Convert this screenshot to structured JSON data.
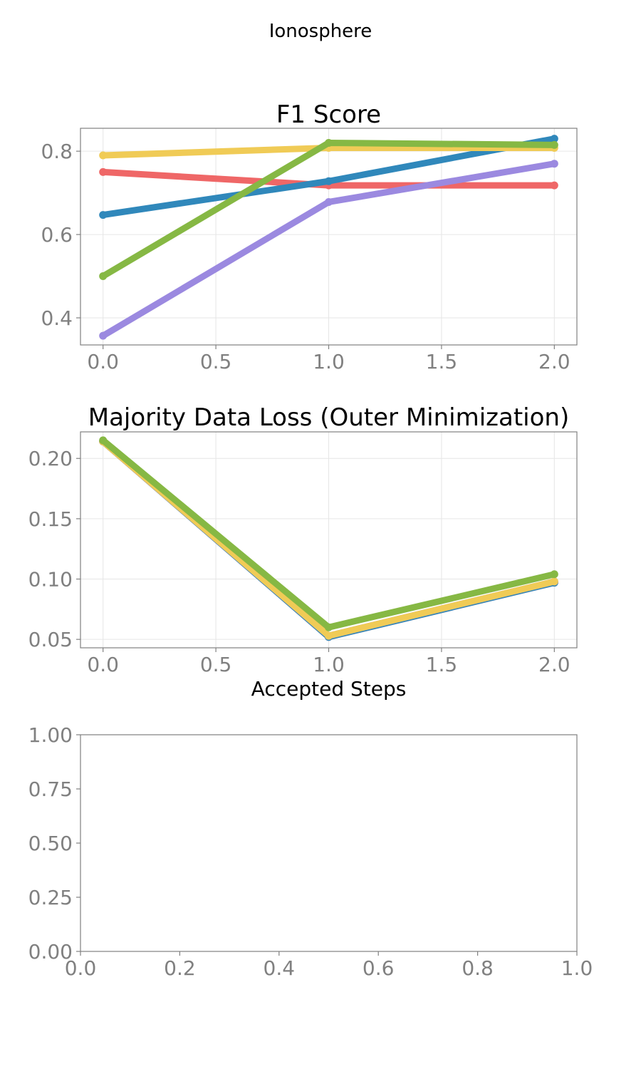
{
  "figure": {
    "suptitle": "Ionosphere"
  },
  "chart_data": [
    {
      "type": "line",
      "title": "F1 Score",
      "xlabel": "",
      "ylabel": "",
      "xlim": [
        -0.1,
        2.1
      ],
      "ylim": [
        0.335,
        0.855
      ],
      "xticks": [
        0.0,
        0.5,
        1.0,
        1.5,
        2.0
      ],
      "xtick_labels": [
        "0.0",
        "0.5",
        "1.0",
        "1.5",
        "2.0"
      ],
      "yticks": [
        0.4,
        0.6,
        0.8
      ],
      "ytick_labels": [
        "0.4",
        "0.6",
        "0.8"
      ],
      "grid": true,
      "x": [
        0,
        1,
        2
      ],
      "series": [
        {
          "color": "#ef6767",
          "values": [
            0.75,
            0.718,
            0.718
          ]
        },
        {
          "color": "#3088bb",
          "values": [
            0.647,
            0.728,
            0.83
          ]
        },
        {
          "color": "#9b89e0",
          "values": [
            0.357,
            0.678,
            0.77
          ]
        },
        {
          "color": "#f0cb56",
          "values": [
            0.79,
            0.808,
            0.808
          ]
        },
        {
          "color": "#86b844",
          "values": [
            0.5,
            0.82,
            0.815
          ]
        }
      ]
    },
    {
      "type": "line",
      "title": "Majority Data Loss (Outer Minimization)",
      "xlabel": "Accepted Steps",
      "ylabel": "",
      "xlim": [
        -0.1,
        2.1
      ],
      "ylim": [
        0.043,
        0.222
      ],
      "xticks": [
        0.0,
        0.5,
        1.0,
        1.5,
        2.0
      ],
      "xtick_labels": [
        "0.0",
        "0.5",
        "1.0",
        "1.5",
        "2.0"
      ],
      "yticks": [
        0.05,
        0.1,
        0.15,
        0.2
      ],
      "ytick_labels": [
        "0.05",
        "0.10",
        "0.15",
        "0.20"
      ],
      "grid": true,
      "x": [
        0,
        1,
        2
      ],
      "series": [
        {
          "color": "#ef6767",
          "values": [
            0.214,
            0.052,
            0.097
          ]
        },
        {
          "color": "#3088bb",
          "values": [
            0.214,
            0.052,
            0.097
          ]
        },
        {
          "color": "#9b89e0",
          "values": [
            0.214,
            0.053,
            0.098
          ]
        },
        {
          "color": "#f0cb56",
          "values": [
            0.214,
            0.053,
            0.098
          ]
        },
        {
          "color": "#86b844",
          "values": [
            0.215,
            0.06,
            0.104
          ]
        }
      ]
    },
    {
      "type": "line",
      "title": "",
      "xlabel": "",
      "ylabel": "",
      "xlim": [
        0.0,
        1.0
      ],
      "ylim": [
        0.0,
        1.0
      ],
      "xticks": [
        0.0,
        0.2,
        0.4,
        0.6,
        0.8,
        1.0
      ],
      "xtick_labels": [
        "0.0",
        "0.2",
        "0.4",
        "0.6",
        "0.8",
        "1.0"
      ],
      "yticks": [
        0.0,
        0.25,
        0.5,
        0.75,
        1.0
      ],
      "ytick_labels": [
        "0.00",
        "0.25",
        "0.50",
        "0.75",
        "1.00"
      ],
      "grid": false,
      "x": [],
      "series": []
    }
  ]
}
